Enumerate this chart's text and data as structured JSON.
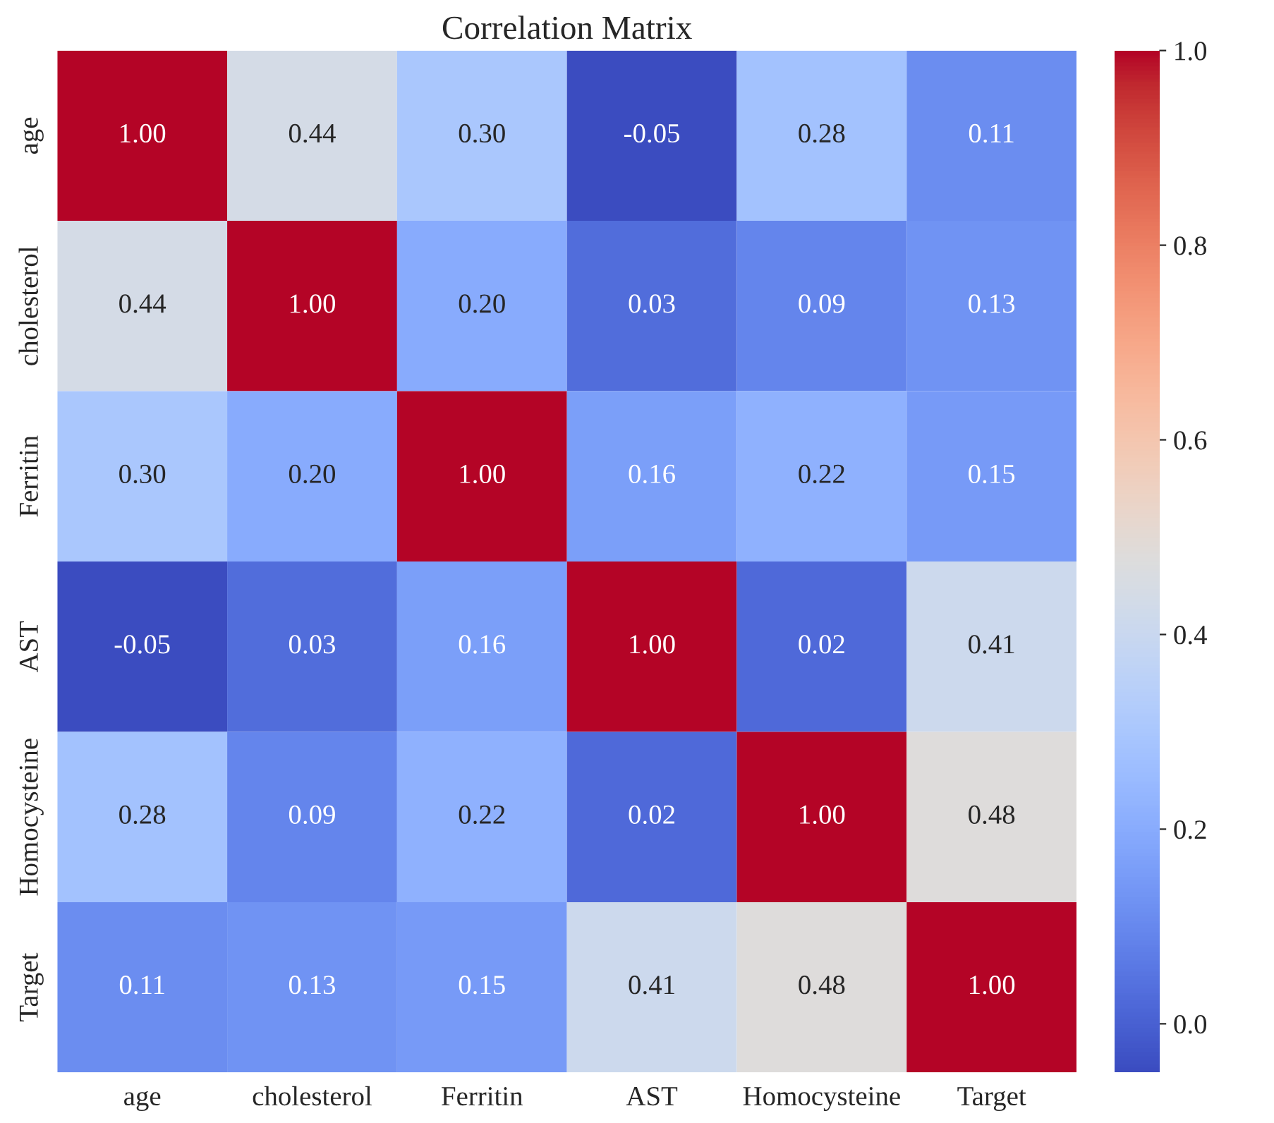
{
  "chart_data": {
    "type": "heatmap",
    "title": "Correlation Matrix",
    "categories": [
      "age",
      "cholesterol",
      "Ferritin",
      "AST",
      "Homocysteine",
      "Target"
    ],
    "y_categories": [
      "age",
      "cholesterol",
      "Ferritin",
      "AST",
      "Homocysteine",
      "Target"
    ],
    "cells": [
      [
        1.0,
        0.44,
        0.3,
        -0.05,
        0.28,
        0.11
      ],
      [
        0.44,
        1.0,
        0.2,
        0.03,
        0.09,
        0.13
      ],
      [
        0.3,
        0.2,
        1.0,
        0.16,
        0.22,
        0.15
      ],
      [
        -0.05,
        0.03,
        0.16,
        1.0,
        0.02,
        0.41
      ],
      [
        0.28,
        0.09,
        0.22,
        0.02,
        1.0,
        0.48
      ],
      [
        0.11,
        0.13,
        0.15,
        0.41,
        0.48,
        1.0
      ]
    ],
    "cell_labels": [
      [
        "1.00",
        "0.44",
        "0.30",
        "-0.05",
        "0.28",
        "0.11"
      ],
      [
        "0.44",
        "1.00",
        "0.20",
        "0.03",
        "0.09",
        "0.13"
      ],
      [
        "0.30",
        "0.20",
        "1.00",
        "0.16",
        "0.22",
        "0.15"
      ],
      [
        "-0.05",
        "0.03",
        "0.16",
        "1.00",
        "0.02",
        "0.41"
      ],
      [
        "0.28",
        "0.09",
        "0.22",
        "0.02",
        "1.00",
        "0.48"
      ],
      [
        "0.11",
        "0.13",
        "0.15",
        "0.41",
        "0.48",
        "1.00"
      ]
    ],
    "clim": [
      -0.05,
      1.0
    ],
    "cticks": [
      {
        "value": 0.0,
        "label": "0.0"
      },
      {
        "value": 0.2,
        "label": "0.2"
      },
      {
        "value": 0.4,
        "label": "0.4"
      },
      {
        "value": 0.6,
        "label": "0.6"
      },
      {
        "value": 0.8,
        "label": "0.8"
      },
      {
        "value": 1.0,
        "label": "1.0"
      }
    ]
  }
}
